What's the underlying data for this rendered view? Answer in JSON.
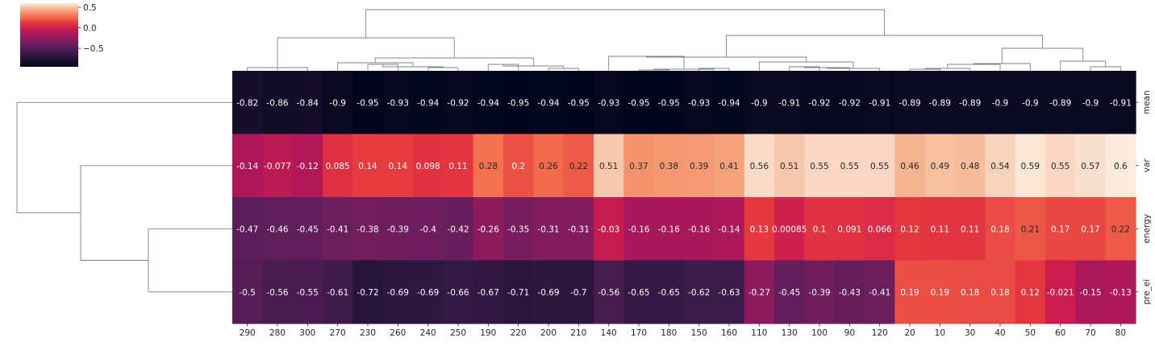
{
  "chart_data": {
    "type": "heatmap",
    "subtype": "clustermap",
    "title": "",
    "xlabel": "",
    "ylabel": "",
    "columns": [
      "290",
      "280",
      "300",
      "270",
      "230",
      "260",
      "240",
      "250",
      "190",
      "220",
      "200",
      "210",
      "140",
      "170",
      "180",
      "150",
      "160",
      "110",
      "130",
      "100",
      "90",
      "120",
      "20",
      "10",
      "30",
      "40",
      "50",
      "60",
      "70",
      "80"
    ],
    "rows": [
      "mean",
      "var",
      "energy",
      "pre_ei"
    ],
    "values": [
      [
        -0.82,
        -0.86,
        -0.84,
        -0.9,
        -0.95,
        -0.93,
        -0.94,
        -0.92,
        -0.94,
        -0.95,
        -0.94,
        -0.95,
        -0.93,
        -0.95,
        -0.95,
        -0.93,
        -0.94,
        -0.9,
        -0.91,
        -0.92,
        -0.92,
        -0.91,
        -0.89,
        -0.89,
        -0.89,
        -0.9,
        -0.9,
        -0.89,
        -0.9,
        -0.91
      ],
      [
        -0.14,
        -0.077,
        -0.12,
        0.085,
        0.14,
        0.14,
        0.098,
        0.11,
        0.28,
        0.2,
        0.26,
        0.22,
        0.51,
        0.37,
        0.38,
        0.39,
        0.41,
        0.56,
        0.51,
        0.55,
        0.55,
        0.55,
        0.46,
        0.49,
        0.48,
        0.54,
        0.59,
        0.55,
        0.57,
        0.6
      ],
      [
        -0.47,
        -0.46,
        -0.45,
        -0.41,
        -0.38,
        -0.39,
        -0.4,
        -0.42,
        -0.26,
        -0.35,
        -0.31,
        -0.31,
        -0.03,
        -0.16,
        -0.16,
        -0.16,
        -0.14,
        0.13,
        0.00085,
        0.1,
        0.091,
        0.066,
        0.12,
        0.11,
        0.11,
        0.18,
        0.21,
        0.17,
        0.17,
        0.22
      ],
      [
        -0.5,
        -0.56,
        -0.55,
        -0.61,
        -0.72,
        -0.69,
        -0.69,
        -0.66,
        -0.67,
        -0.71,
        -0.69,
        -0.7,
        -0.56,
        -0.65,
        -0.65,
        -0.62,
        -0.63,
        -0.27,
        -0.45,
        -0.39,
        -0.43,
        -0.41,
        0.19,
        0.19,
        0.18,
        0.18,
        0.12,
        -0.021,
        -0.15,
        -0.13
      ]
    ],
    "labels": [
      [
        "-0.82",
        "-0.86",
        "-0.84",
        "-0.9",
        "-0.95",
        "-0.93",
        "-0.94",
        "-0.92",
        "-0.94",
        "-0.95",
        "-0.94",
        "-0.95",
        "-0.93",
        "-0.95",
        "-0.95",
        "-0.93",
        "-0.94",
        "-0.9",
        "-0.91",
        "-0.92",
        "-0.92",
        "-0.91",
        "-0.89",
        "-0.89",
        "-0.89",
        "-0.9",
        "-0.9",
        "-0.89",
        "-0.9",
        "-0.91"
      ],
      [
        "-0.14",
        "-0.077",
        "-0.12",
        "0.085",
        "0.14",
        "0.14",
        "0.098",
        "0.11",
        "0.28",
        "0.2",
        "0.26",
        "0.22",
        "0.51",
        "0.37",
        "0.38",
        "0.39",
        "0.41",
        "0.56",
        "0.51",
        "0.55",
        "0.55",
        "0.55",
        "0.46",
        "0.49",
        "0.48",
        "0.54",
        "0.59",
        "0.55",
        "0.57",
        "0.6"
      ],
      [
        "-0.47",
        "-0.46",
        "-0.45",
        "-0.41",
        "-0.38",
        "-0.39",
        "-0.4",
        "-0.42",
        "-0.26",
        "-0.35",
        "-0.31",
        "-0.31",
        "-0.03",
        "-0.16",
        "-0.16",
        "-0.16",
        "-0.14",
        "0.13",
        "0.00085",
        "0.1",
        "0.091",
        "0.066",
        "0.12",
        "0.11",
        "0.11",
        "0.18",
        "0.21",
        "0.17",
        "0.17",
        "0.22"
      ],
      [
        "-0.5",
        "-0.56",
        "-0.55",
        "-0.61",
        "-0.72",
        "-0.69",
        "-0.69",
        "-0.66",
        "-0.67",
        "-0.71",
        "-0.69",
        "-0.7",
        "-0.56",
        "-0.65",
        "-0.65",
        "-0.62",
        "-0.63",
        "-0.27",
        "-0.45",
        "-0.39",
        "-0.43",
        "-0.41",
        "0.19",
        "0.19",
        "0.18",
        "0.18",
        "0.12",
        "-0.021",
        "-0.15",
        "-0.13"
      ]
    ],
    "colormap": "rocket",
    "vmin": -0.95,
    "vmax": 0.6,
    "colorbar": {
      "ticks": [
        0.5,
        0.0,
        -0.5
      ],
      "tick_labels": [
        "0.5",
        "0.0",
        "−0.5"
      ],
      "placement": "top-left"
    },
    "row_dendrogram": "left",
    "col_dendrogram": "top",
    "grid": false
  }
}
